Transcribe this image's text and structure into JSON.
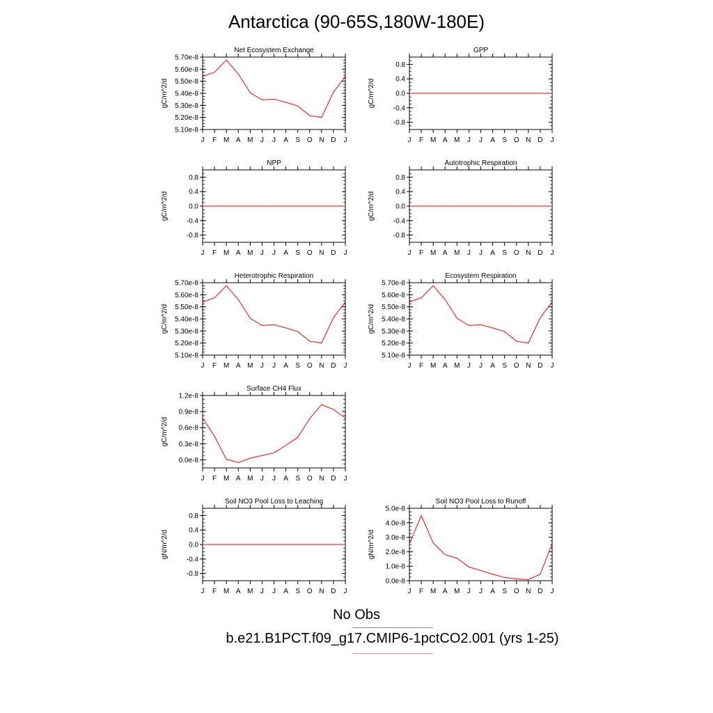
{
  "page": {
    "title": "Antarctica (90-65S,180W-180E)"
  },
  "legend": {
    "obs_label": "No Obs",
    "obs_color": "#7f7ff5",
    "model_label": "b.e21.B1PCT.f09_g17.CMIP6-1pctCO2.001 (yrs 1-25)",
    "model_color": "#f58a8a"
  },
  "line_color": "#ff0000",
  "chart_data": [
    {
      "type": "line",
      "title": "Net Ecosystem Exchange",
      "ylabel": "gC/m^2/d",
      "categories": [
        "J",
        "F",
        "M",
        "A",
        "M",
        "J",
        "J",
        "A",
        "S",
        "O",
        "N",
        "D",
        "J"
      ],
      "yticks": [
        "5.10e-8",
        "5.20e-8",
        "5.30e-8",
        "5.40e-8",
        "5.50e-8",
        "5.60e-8",
        "5.70e-8"
      ],
      "ytick_values": [
        5.1e-08,
        5.2e-08,
        5.3e-08,
        5.4e-08,
        5.5e-08,
        5.6e-08,
        5.7e-08
      ],
      "ylim": [
        5.1e-08,
        5.7e-08
      ],
      "values": [
        5.54e-08,
        5.575e-08,
        5.675e-08,
        5.56e-08,
        5.405e-08,
        5.345e-08,
        5.352e-08,
        5.325e-08,
        5.295e-08,
        5.215e-08,
        5.2e-08,
        5.41e-08,
        5.54e-08
      ]
    },
    {
      "type": "line",
      "title": "GPP",
      "ylabel": "gC/m^2/d",
      "categories": [
        "J",
        "F",
        "M",
        "A",
        "M",
        "J",
        "J",
        "A",
        "S",
        "O",
        "N",
        "D",
        "J"
      ],
      "yticks": [
        "-0.8",
        "-0.4",
        "0.0",
        "0.4",
        "0.8"
      ],
      "ytick_values": [
        -0.8,
        -0.4,
        0,
        0.4,
        0.8
      ],
      "ylim": [
        -1.0,
        1.0
      ],
      "values": [
        0,
        0,
        0,
        0,
        0,
        0,
        0,
        0,
        0,
        0,
        0,
        0,
        0
      ]
    },
    {
      "type": "line",
      "title": "NPP",
      "ylabel": "gC/m^2/d",
      "categories": [
        "J",
        "F",
        "M",
        "A",
        "M",
        "J",
        "J",
        "A",
        "S",
        "O",
        "N",
        "D",
        "J"
      ],
      "yticks": [
        "-0.8",
        "-0.4",
        "0.0",
        "0.4",
        "0.8"
      ],
      "ytick_values": [
        -0.8,
        -0.4,
        0,
        0.4,
        0.8
      ],
      "ylim": [
        -1.0,
        1.0
      ],
      "values": [
        0,
        0,
        0,
        0,
        0,
        0,
        0,
        0,
        0,
        0,
        0,
        0,
        0
      ]
    },
    {
      "type": "line",
      "title": "Autotrophic Respiration",
      "ylabel": "gC/m^2/d",
      "categories": [
        "J",
        "F",
        "M",
        "A",
        "M",
        "J",
        "J",
        "A",
        "S",
        "O",
        "N",
        "D",
        "J"
      ],
      "yticks": [
        "-0.8",
        "-0.4",
        "0.0",
        "0.4",
        "0.8"
      ],
      "ytick_values": [
        -0.8,
        -0.4,
        0,
        0.4,
        0.8
      ],
      "ylim": [
        -1.0,
        1.0
      ],
      "values": [
        0,
        0,
        0,
        0,
        0,
        0,
        0,
        0,
        0,
        0,
        0,
        0,
        0
      ]
    },
    {
      "type": "line",
      "title": "Heterotrophic Respiration",
      "ylabel": "gC/m^2/d",
      "categories": [
        "J",
        "F",
        "M",
        "A",
        "M",
        "J",
        "J",
        "A",
        "S",
        "O",
        "N",
        "D",
        "J"
      ],
      "yticks": [
        "5.10e-8",
        "5.20e-8",
        "5.30e-8",
        "5.40e-8",
        "5.50e-8",
        "5.60e-8",
        "5.70e-8"
      ],
      "ytick_values": [
        5.1e-08,
        5.2e-08,
        5.3e-08,
        5.4e-08,
        5.5e-08,
        5.6e-08,
        5.7e-08
      ],
      "ylim": [
        5.1e-08,
        5.7e-08
      ],
      "values": [
        5.54e-08,
        5.575e-08,
        5.675e-08,
        5.56e-08,
        5.405e-08,
        5.345e-08,
        5.352e-08,
        5.325e-08,
        5.295e-08,
        5.215e-08,
        5.2e-08,
        5.41e-08,
        5.54e-08
      ]
    },
    {
      "type": "line",
      "title": "Ecosystem Respiration",
      "ylabel": "gC/m^2/d",
      "categories": [
        "J",
        "F",
        "M",
        "A",
        "M",
        "J",
        "J",
        "A",
        "S",
        "O",
        "N",
        "D",
        "J"
      ],
      "yticks": [
        "5.10e-8",
        "5.20e-8",
        "5.30e-8",
        "5.40e-8",
        "5.50e-8",
        "5.60e-8",
        "5.70e-8"
      ],
      "ytick_values": [
        5.1e-08,
        5.2e-08,
        5.3e-08,
        5.4e-08,
        5.5e-08,
        5.6e-08,
        5.7e-08
      ],
      "ylim": [
        5.1e-08,
        5.7e-08
      ],
      "values": [
        5.54e-08,
        5.575e-08,
        5.675e-08,
        5.56e-08,
        5.405e-08,
        5.345e-08,
        5.352e-08,
        5.325e-08,
        5.295e-08,
        5.215e-08,
        5.2e-08,
        5.41e-08,
        5.54e-08
      ]
    },
    {
      "type": "line",
      "title": "Surface CH4 Flux",
      "ylabel": "gC/m^2/d",
      "categories": [
        "J",
        "F",
        "M",
        "A",
        "M",
        "J",
        "J",
        "A",
        "S",
        "O",
        "N",
        "D",
        "J"
      ],
      "yticks": [
        "0.0e-8",
        "0.3e-8",
        "0.6e-8",
        "0.9e-8",
        "1.2e-8"
      ],
      "ytick_values": [
        0,
        3e-09,
        6e-09,
        9e-09,
        1.2e-08
      ],
      "ylim": [
        -1.5e-09,
        1.2e-08
      ],
      "values": [
        7.8e-09,
        4.4e-09,
        1e-10,
        -5e-10,
        3e-10,
        8e-10,
        1.3e-09,
        2.7e-09,
        4.2e-09,
        7.7e-09,
        1.03e-08,
        9.4e-09,
        7.8e-09
      ]
    },
    {
      "type": "line",
      "title": "Soil NO3 Pool Loss to Leaching",
      "ylabel": "gN/m^2/d",
      "categories": [
        "J",
        "F",
        "M",
        "A",
        "M",
        "J",
        "J",
        "A",
        "S",
        "O",
        "N",
        "D",
        "J"
      ],
      "yticks": [
        "-0.8",
        "-0.4",
        "0.0",
        "0.4",
        "0.8"
      ],
      "ytick_values": [
        -0.8,
        -0.4,
        0,
        0.4,
        0.8
      ],
      "ylim": [
        -1.0,
        1.0
      ],
      "values": [
        0,
        0,
        0,
        0,
        0,
        0,
        0,
        0,
        0,
        0,
        0,
        0,
        0
      ]
    },
    {
      "type": "line",
      "title": "Soil NO3 Pool Loss to Runoff",
      "ylabel": "gN/m^2/d",
      "categories": [
        "J",
        "F",
        "M",
        "A",
        "M",
        "J",
        "J",
        "A",
        "S",
        "O",
        "N",
        "D",
        "J"
      ],
      "yticks": [
        "0.0e-8",
        "1.0e-8",
        "2.0e-8",
        "3.0e-8",
        "4.0e-8",
        "5.0e-8"
      ],
      "ytick_values": [
        0,
        1e-08,
        2e-08,
        3e-08,
        4e-08,
        5e-08
      ],
      "ylim": [
        0,
        5e-08
      ],
      "values": [
        2.55e-08,
        4.5e-08,
        2.6e-08,
        1.8e-08,
        1.55e-08,
        9.5e-09,
        7e-09,
        4.5e-09,
        2.2e-09,
        1.2e-09,
        8e-10,
        4.5e-09,
        2.55e-08
      ]
    }
  ]
}
